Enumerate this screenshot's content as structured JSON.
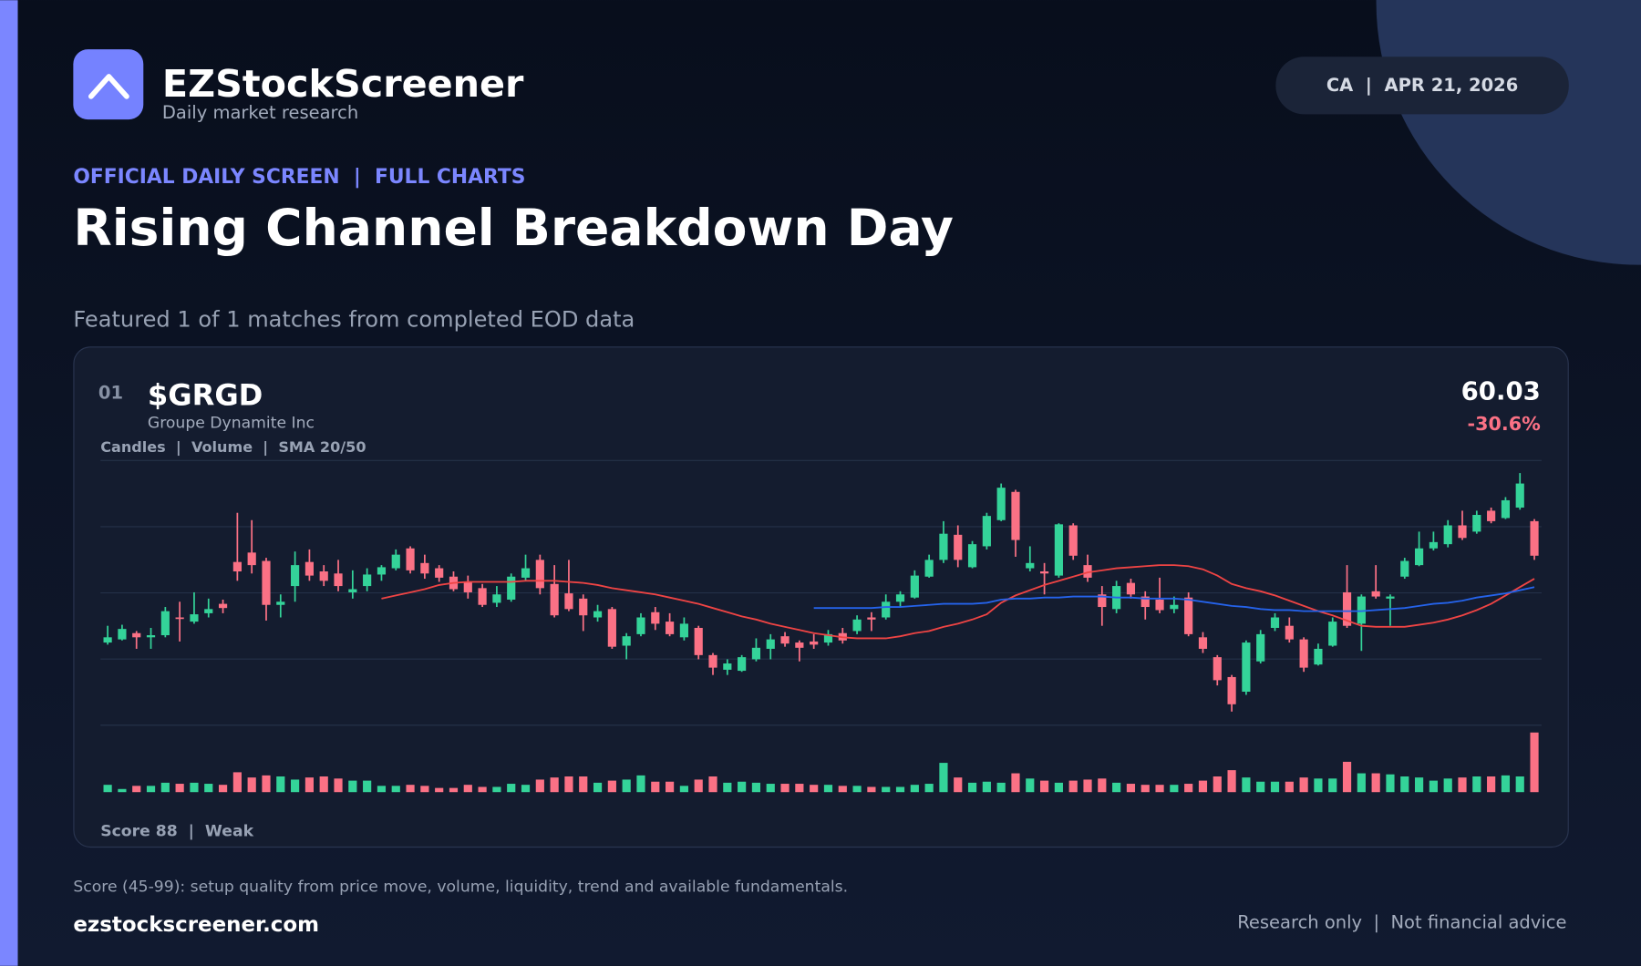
{
  "header": {
    "brand": "EZStockScreener",
    "tagline": "Daily market research",
    "badge": "CA  |  APR 21, 2026",
    "kicker": "OFFICIAL DAILY SCREEN  |  FULL CHARTS",
    "title": "Rising Channel Breakdown Day",
    "subtitle": "Featured 1 of 1 matches from completed EOD data"
  },
  "card": {
    "rank": "01",
    "ticker": "$GRGD",
    "company": "Groupe Dynamite Inc",
    "indicators": "Candles  |  Volume  |  SMA 20/50",
    "price": "60.03",
    "change": "-30.6%",
    "score": "Score 88  |  Weak"
  },
  "chart_data": {
    "type": "candlestick",
    "up_color": "#34d399",
    "down_color": "#fb7185",
    "ylim": [
      0,
      253
    ],
    "volume_ylim": [
      0,
      64
    ],
    "open": [
      79,
      82,
      88,
      84,
      86,
      103,
      99,
      107,
      116,
      156,
      165,
      157,
      115,
      133,
      156,
      147,
      145,
      127,
      133,
      144,
      150,
      169,
      155,
      150,
      142,
      137,
      131,
      117,
      120,
      141,
      158,
      135,
      126,
      121,
      103,
      111,
      76,
      87,
      108,
      99,
      84,
      93,
      67,
      53,
      52,
      63,
      73,
      85,
      79,
      80,
      79,
      88,
      90,
      103,
      103,
      118,
      122,
      142,
      158,
      182,
      151,
      171,
      196,
      223,
      150,
      147,
      143,
      191,
      153,
      125,
      111,
      136,
      123,
      120,
      111,
      122,
      84,
      65,
      46,
      32,
      61,
      93,
      95,
      82,
      58,
      76,
      127,
      97,
      128,
      121,
      142,
      153,
      169,
      173,
      191,
      185,
      205,
      198,
      208,
      195
    ],
    "high": [
      95,
      96,
      90,
      93,
      113,
      118,
      127,
      121,
      120,
      203,
      196,
      160,
      125,
      166,
      168,
      153,
      158,
      148,
      150,
      153,
      168,
      171,
      163,
      153,
      147,
      143,
      135,
      133,
      145,
      163,
      163,
      153,
      158,
      125,
      115,
      113,
      88,
      107,
      113,
      107,
      103,
      95,
      69,
      63,
      67,
      83,
      87,
      89,
      81,
      87,
      91,
      93,
      105,
      108,
      125,
      128,
      148,
      163,
      195,
      191,
      176,
      203,
      231,
      225,
      171,
      155,
      193,
      193,
      163,
      133,
      138,
      140,
      128,
      141,
      123,
      127,
      89,
      67,
      48,
      81,
      91,
      107,
      103,
      84,
      78,
      103,
      153,
      125,
      153,
      125,
      160,
      185,
      185,
      196,
      205,
      205,
      208,
      218,
      241,
      197
    ],
    "low": [
      77,
      81,
      73,
      73,
      84,
      80,
      97,
      103,
      107,
      138,
      145,
      100,
      103,
      118,
      138,
      133,
      128,
      121,
      128,
      138,
      148,
      145,
      140,
      137,
      128,
      121,
      113,
      113,
      118,
      138,
      125,
      103,
      109,
      90,
      99,
      73,
      63,
      85,
      91,
      85,
      81,
      63,
      48,
      48,
      51,
      61,
      63,
      75,
      61,
      73,
      76,
      78,
      87,
      90,
      101,
      113,
      121,
      141,
      155,
      151,
      150,
      168,
      195,
      161,
      147,
      125,
      141,
      158,
      137,
      95,
      107,
      121,
      101,
      107,
      107,
      85,
      69,
      38,
      13,
      29,
      59,
      90,
      79,
      51,
      57,
      75,
      93,
      71,
      121,
      95,
      140,
      152,
      167,
      170,
      177,
      183,
      193,
      197,
      206,
      158
    ],
    "close": [
      84,
      92,
      84,
      86,
      109,
      102,
      106,
      111,
      112,
      147,
      153,
      115,
      118,
      153,
      143,
      138,
      133,
      130,
      144,
      151,
      163,
      148,
      145,
      141,
      130,
      127,
      115,
      125,
      142,
      150,
      131,
      105,
      111,
      105,
      109,
      75,
      85,
      103,
      97,
      87,
      97,
      67,
      55,
      59,
      65,
      74,
      82,
      78,
      74,
      77,
      87,
      81,
      101,
      101,
      118,
      125,
      143,
      158,
      183,
      158,
      173,
      200,
      227,
      177,
      155,
      145,
      192,
      162,
      141,
      113,
      133,
      125,
      113,
      110,
      115,
      87,
      73,
      43,
      20,
      79,
      87,
      103,
      82,
      55,
      73,
      99,
      95,
      123,
      123,
      123,
      157,
      169,
      175,
      191,
      179,
      201,
      195,
      215,
      231,
      162
    ],
    "volume": [
      7,
      3,
      6,
      6,
      9,
      8,
      9,
      8,
      7,
      19,
      14,
      16,
      15,
      12,
      14,
      15,
      13,
      11,
      11,
      6,
      6,
      7,
      6,
      4,
      4,
      7,
      5,
      5,
      8,
      7,
      12,
      14,
      15,
      15,
      9,
      11,
      12,
      16,
      10,
      10,
      6,
      12,
      15,
      9,
      10,
      9,
      8,
      8,
      8,
      7,
      7,
      6,
      6,
      5,
      5,
      5,
      7,
      8,
      28,
      14,
      9,
      10,
      9,
      18,
      13,
      11,
      9,
      11,
      12,
      13,
      9,
      8,
      7,
      7,
      7,
      8,
      11,
      15,
      21,
      14,
      10,
      10,
      10,
      14,
      13,
      13,
      29,
      18,
      18,
      17,
      15,
      14,
      11,
      13,
      14,
      15,
      15,
      16,
      15,
      57
    ],
    "overlays": [
      {
        "color": "#ef4444",
        "values": [
          null,
          null,
          null,
          null,
          null,
          null,
          null,
          null,
          null,
          null,
          null,
          null,
          null,
          null,
          null,
          null,
          null,
          null,
          null,
          121,
          124,
          127,
          130,
          134,
          136,
          137,
          137,
          137,
          137,
          138,
          138,
          138,
          137,
          136,
          134,
          131,
          129,
          127,
          125,
          122,
          119,
          116,
          112,
          108,
          104,
          101,
          97,
          94,
          91,
          88,
          86,
          84,
          83,
          83,
          83,
          85,
          88,
          90,
          94,
          97,
          101,
          106,
          117,
          124,
          129,
          134,
          138,
          142,
          146,
          148,
          150,
          151,
          152,
          153,
          153,
          152,
          149,
          143,
          135,
          131,
          128,
          124,
          119,
          114,
          109,
          105,
          100,
          95,
          94,
          94,
          94,
          96,
          98,
          101,
          105,
          110,
          116,
          124,
          132,
          140
        ]
      },
      {
        "color": "#2563eb",
        "values": [
          null,
          null,
          null,
          null,
          null,
          null,
          null,
          null,
          null,
          null,
          null,
          null,
          null,
          null,
          null,
          null,
          null,
          null,
          null,
          null,
          null,
          null,
          null,
          null,
          null,
          null,
          null,
          null,
          null,
          null,
          null,
          null,
          null,
          null,
          null,
          null,
          null,
          null,
          null,
          null,
          null,
          null,
          null,
          null,
          null,
          null,
          null,
          null,
          null,
          112,
          112,
          112,
          112,
          112,
          113,
          113,
          114,
          115,
          116,
          116,
          116,
          117,
          120,
          121,
          121,
          122,
          122,
          123,
          123,
          123,
          122,
          122,
          121,
          121,
          121,
          120,
          118,
          116,
          114,
          113,
          111,
          110,
          110,
          109,
          109,
          109,
          109,
          109,
          110,
          111,
          112,
          114,
          116,
          117,
          119,
          122,
          124,
          126,
          129,
          132
        ]
      }
    ]
  },
  "footer": {
    "note": "Score (45-99): setup quality from price move, volume, liquidity, trend and available fundamentals.",
    "site": "ezstockscreener.com",
    "disclaimer": "Research only  |  Not financial advice"
  }
}
